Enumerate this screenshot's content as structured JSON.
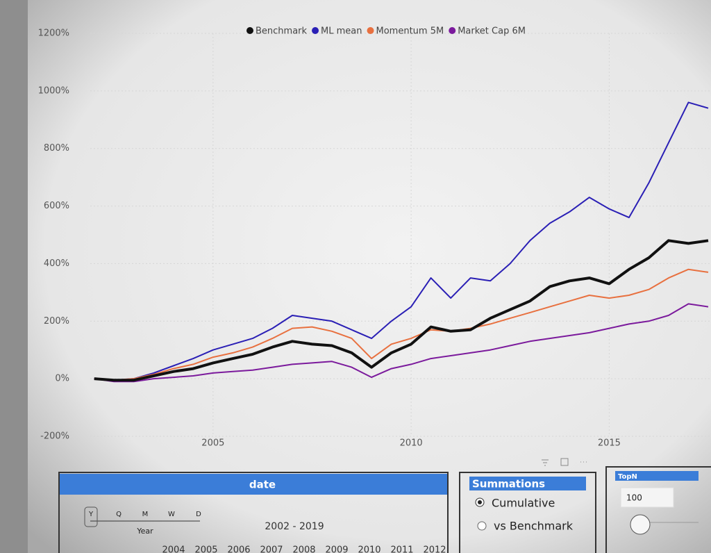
{
  "chart_data": {
    "type": "line",
    "x": [
      2002,
      2002.5,
      2003,
      2003.5,
      2004,
      2004.5,
      2005,
      2005.5,
      2006,
      2006.5,
      2007,
      2007.5,
      2008,
      2008.5,
      2009,
      2009.5,
      2010,
      2010.5,
      2011,
      2011.5,
      2012,
      2012.5,
      2013,
      2013.5,
      2014,
      2014.5,
      2015,
      2015.5,
      2016,
      2016.5,
      2017,
      2017.5
    ],
    "series": [
      {
        "name": "Benchmark",
        "color": "#111111",
        "values": [
          0,
          -5,
          -5,
          10,
          25,
          35,
          55,
          70,
          85,
          110,
          130,
          120,
          115,
          90,
          40,
          90,
          120,
          180,
          165,
          170,
          210,
          240,
          270,
          320,
          340,
          350,
          330,
          380,
          420,
          480,
          470,
          480
        ]
      },
      {
        "name": "ML mean",
        "color": "#2a1fb5",
        "values": [
          0,
          -5,
          0,
          20,
          45,
          70,
          100,
          120,
          140,
          175,
          220,
          210,
          200,
          170,
          140,
          200,
          250,
          350,
          280,
          350,
          340,
          400,
          480,
          540,
          580,
          630,
          590,
          560,
          680,
          820,
          960,
          940
        ]
      },
      {
        "name": "Momentum 5M",
        "color": "#e8703f",
        "values": [
          0,
          -5,
          0,
          15,
          35,
          50,
          75,
          90,
          110,
          140,
          175,
          180,
          165,
          140,
          70,
          120,
          140,
          170,
          165,
          175,
          190,
          210,
          230,
          250,
          270,
          290,
          280,
          290,
          310,
          350,
          380,
          370
        ]
      },
      {
        "name": "Market Cap 6M",
        "color": "#7b1a9c",
        "values": [
          0,
          -10,
          -10,
          0,
          5,
          10,
          20,
          25,
          30,
          40,
          50,
          55,
          60,
          40,
          5,
          35,
          50,
          70,
          80,
          90,
          100,
          115,
          130,
          140,
          150,
          160,
          175,
          190,
          200,
          220,
          260,
          250
        ]
      }
    ],
    "xlim": [
      2001.9,
      2017.5
    ],
    "xticks": [
      2005,
      2010,
      2015
    ],
    "ylim": [
      -200,
      1200
    ],
    "yticks": [
      {
        "value": -200,
        "label": "-200%"
      },
      {
        "value": 0,
        "label": "0%"
      },
      {
        "value": 200,
        "label": "200%"
      },
      {
        "value": 400,
        "label": "400%"
      },
      {
        "value": 600,
        "label": "600%"
      },
      {
        "value": 800,
        "label": "800%"
      },
      {
        "value": 1000,
        "label": "1000%"
      },
      {
        "value": 1200,
        "label": "1200%"
      }
    ],
    "grid": true
  },
  "date_slicer": {
    "title": "date",
    "levels": [
      "Y",
      "Q",
      "M",
      "W",
      "D"
    ],
    "level_caption": "Year",
    "range": "2002 - 2019",
    "years": [
      "2004",
      "2005",
      "2006",
      "2007",
      "2008",
      "2009",
      "2010",
      "2011",
      "2012"
    ]
  },
  "summations": {
    "title": "Summations",
    "options": [
      "Cumulative",
      "vs Benchmark"
    ]
  },
  "topn": {
    "title": "TopN",
    "value": "100"
  }
}
